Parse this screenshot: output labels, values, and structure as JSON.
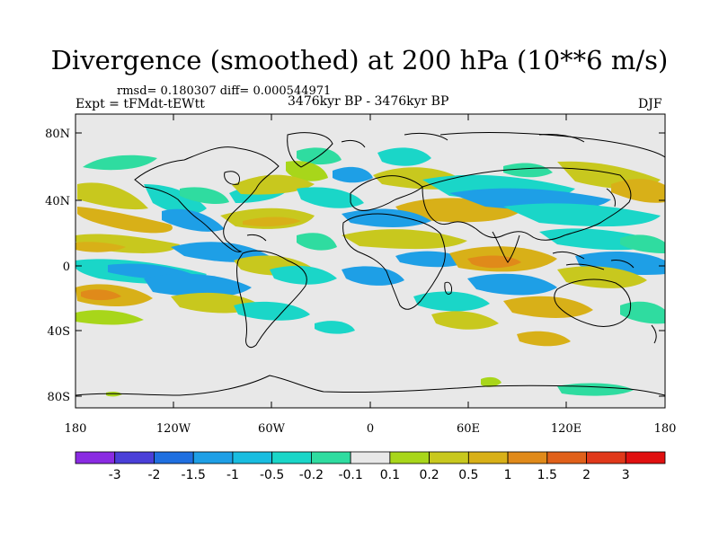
{
  "title": "Divergence (smoothed) at 200 hPa (10**6 m/s)",
  "stats": "rmsd= 0.180307 diff= 0.000544971",
  "experiment": "Expt = tFMdt-tEWtt",
  "period": "3476kyr BP - 3476kyr BP",
  "season": "DJF",
  "x_axis_labels": [
    "180",
    "120W",
    "60W",
    "0",
    "60E",
    "120E",
    "180"
  ],
  "y_axis_labels": [
    "80N",
    "40N",
    "0",
    "40S",
    "80S"
  ],
  "colorbar": {
    "labels": [
      "-3",
      "-2",
      "-1.5",
      "-1",
      "-0.5",
      "-0.2",
      "-0.1",
      "0.1",
      "0.2",
      "0.5",
      "1",
      "1.5",
      "2",
      "3"
    ],
    "colors": [
      "#8a2be2",
      "#4a3fd8",
      "#1f6fe0",
      "#1e9fe6",
      "#19bde0",
      "#1ad6c8",
      "#2fdca0",
      "#e8e8e8",
      "#a8d61a",
      "#c8c81e",
      "#d8b018",
      "#e08a1a",
      "#e0601a",
      "#e0381a",
      "#e01010"
    ]
  }
}
